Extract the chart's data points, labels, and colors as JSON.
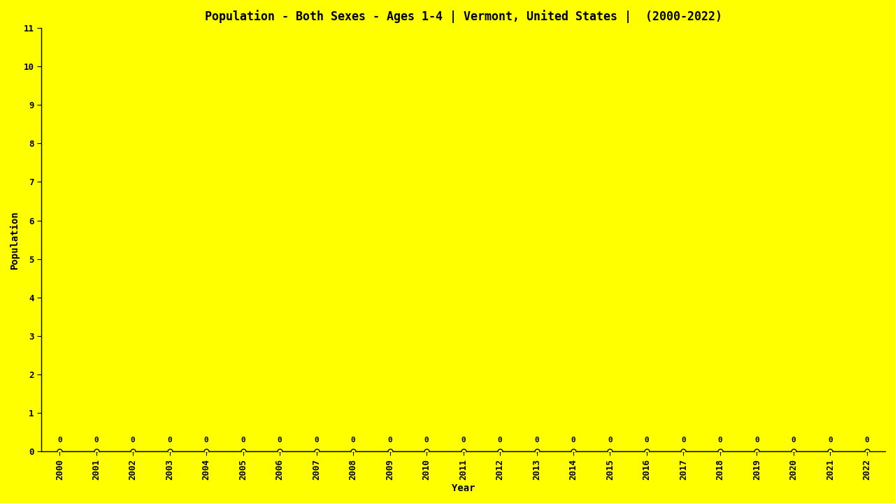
{
  "title": "Population - Both Sexes - Ages 1-4 | Vermont, United States |  (2000-2022)",
  "xlabel": "Year",
  "ylabel": "Population",
  "background_color": "#FFFF00",
  "years": [
    2000,
    2001,
    2002,
    2003,
    2004,
    2005,
    2006,
    2007,
    2008,
    2009,
    2010,
    2011,
    2012,
    2013,
    2014,
    2015,
    2016,
    2017,
    2018,
    2019,
    2020,
    2021,
    2022
  ],
  "values": [
    0,
    0,
    0,
    0,
    0,
    0,
    0,
    0,
    0,
    0,
    0,
    0,
    0,
    0,
    0,
    0,
    0,
    0,
    0,
    0,
    0,
    0,
    0
  ],
  "ylim": [
    0,
    11
  ],
  "yticks": [
    0,
    1,
    2,
    3,
    4,
    5,
    6,
    7,
    8,
    9,
    10,
    11
  ],
  "text_color": "#000000",
  "line_color": "#0000FF",
  "marker_color": "#000000",
  "title_fontsize": 12,
  "axis_label_fontsize": 10,
  "tick_fontsize": 9,
  "annotation_fontsize": 8
}
